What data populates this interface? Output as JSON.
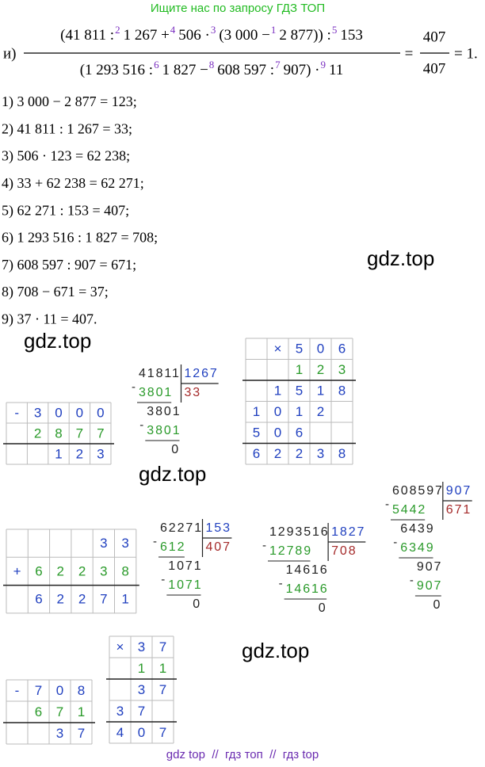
{
  "header": {
    "title": "Ищите нас по запросу ГДЗ ТОП"
  },
  "expression": {
    "label": "и)",
    "numerator": [
      {
        "text": "(41 811 :",
        "mark": "2"
      },
      {
        "text": "1 267 +",
        "mark": "4"
      },
      {
        "text": "506 ·",
        "mark": "3"
      },
      {
        "text": "(3 000 −",
        "mark": "1"
      },
      {
        "text": "2 877)) :",
        "mark": "5"
      },
      {
        "text": "153"
      }
    ],
    "denominator": [
      {
        "text": "(1 293 516 :",
        "mark": "6"
      },
      {
        "text": "1 827 −",
        "mark": "8"
      },
      {
        "text": "608 597 :",
        "mark": "7"
      },
      {
        "text": "907) ·",
        "mark": "9"
      },
      {
        "text": "11"
      }
    ],
    "equals": "=",
    "result_numerator": "407",
    "result_denominator": "407",
    "tail": "= 1."
  },
  "steps": [
    "1) 3 000 − 2 877 = 123;",
    "2) 41 811 : 1 267 = 33;",
    "3) 506 · 123 = 62 238;",
    "4) 33 + 62 238 = 62 271;",
    "5) 62 271 : 153 = 407;",
    "6) 1 293 516 : 1 827 = 708;",
    "7) 608 597 : 907 = 671;",
    "8) 708 − 671 = 37;",
    "9) 37 · 11 = 407."
  ],
  "watermarks": [
    "gdz.top",
    "gdz.top",
    "gdz.top",
    "gdz.top"
  ],
  "grids": [
    {
      "rows": [
        [
          "-",
          "3",
          "0",
          "0",
          "0"
        ],
        [
          null,
          "2",
          "8",
          "7",
          "7"
        ],
        [
          null,
          null,
          "1",
          "2",
          "3"
        ]
      ]
    },
    {
      "rows": [
        [
          null,
          "×",
          "5",
          "0",
          "6"
        ],
        [
          null,
          null,
          "1",
          "2",
          "3"
        ],
        [
          null,
          "1",
          "5",
          "1",
          "8"
        ],
        [
          "1",
          "0",
          "1",
          "2",
          null
        ],
        [
          "5",
          "0",
          "6",
          null,
          null
        ],
        [
          "6",
          "2",
          "2",
          "3",
          "8"
        ]
      ]
    },
    {
      "rows": [
        [
          null,
          null,
          null,
          null,
          "3",
          "3"
        ],
        [
          "+",
          "6",
          "2",
          "2",
          "3",
          "8"
        ],
        [
          null,
          "6",
          "2",
          "2",
          "7",
          "1"
        ]
      ]
    },
    {
      "rows": [
        [
          "-",
          "7",
          "0",
          "8"
        ],
        [
          null,
          "6",
          "7",
          "1"
        ],
        [
          null,
          null,
          "3",
          "7"
        ]
      ]
    },
    {
      "rows": [
        [
          "×",
          "3",
          "7"
        ],
        [
          null,
          "1",
          "1"
        ],
        [
          null,
          "3",
          "7"
        ],
        [
          "3",
          "7",
          null
        ],
        [
          "4",
          "0",
          "7"
        ]
      ]
    }
  ],
  "divisions": [
    {
      "sign": "-",
      "dividend": "41811",
      "divisor": "1267",
      "quotient": "33",
      "steps": [
        "3801",
        "3801",
        "3801",
        "0"
      ]
    },
    {
      "sign": "-",
      "dividend": "62271",
      "divisor": "153",
      "quotient": "407",
      "steps": [
        "612",
        "1071",
        "1071",
        "0"
      ]
    },
    {
      "sign": "-",
      "dividend": "1293516",
      "divisor": "1827",
      "quotient": "708",
      "steps": [
        "12789",
        "14616",
        "14616",
        "0"
      ]
    },
    {
      "sign": "-",
      "dividend": "608597",
      "divisor": "907",
      "quotient": "671",
      "steps": [
        "5442",
        "6439",
        "6349",
        "907",
        "907",
        "0"
      ]
    }
  ],
  "footer": "gdz top  //  гдз топ  //  гдз top"
}
